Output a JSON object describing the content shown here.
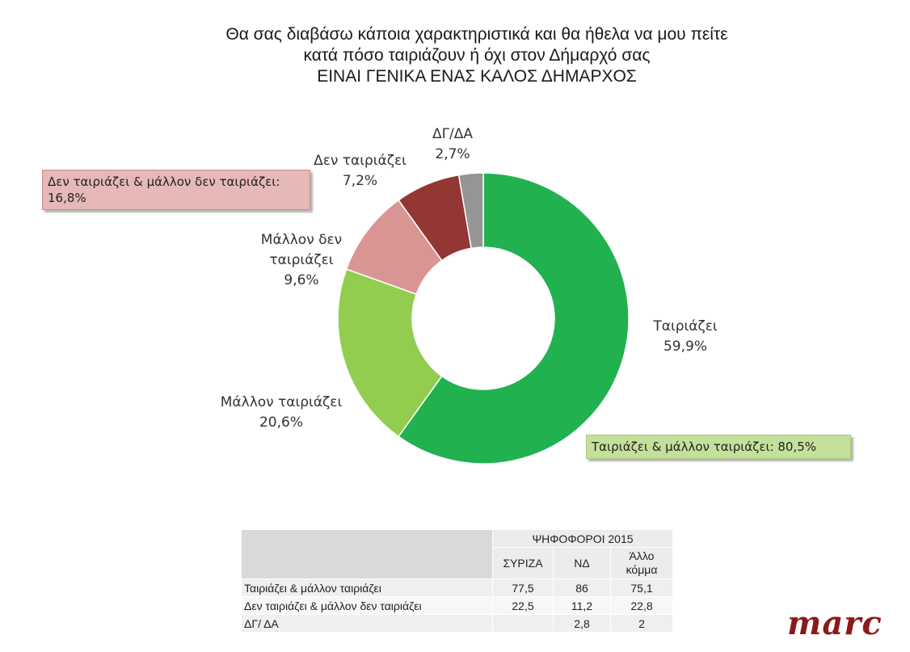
{
  "title": {
    "line1": "Θα σας διαβάσω κάποια χαρακτηριστικά και θα ήθελα να μου πείτε",
    "line2": "κατά πόσο ταιριάζουν ή όχι στον Δήμαρχό σας",
    "line3": "ΕΙΝΑΙ ΓΕΝΙΚΑ ΕΝΑΣ ΚΑΛΟΣ ΔΗΜΑΡΧΟΣ"
  },
  "chart_data": {
    "type": "pie",
    "donut": true,
    "slices": [
      {
        "name": "Ταιριάζει",
        "value": 59.9,
        "label": "59,9%",
        "color": "#21b14f"
      },
      {
        "name": "Μάλλον ταιριάζει",
        "value": 20.6,
        "label": "20,6%",
        "color": "#92cd50"
      },
      {
        "name": "Μάλλον δεν ταιριάζει",
        "value": 9.6,
        "label": "9,6%",
        "color": "#d99594"
      },
      {
        "name": "Δεν ταιριάζει",
        "value": 7.2,
        "label": "7,2%",
        "color": "#943634"
      },
      {
        "name": "ΔΓ/ΔΑ",
        "value": 2.7,
        "label": "2,7%",
        "color": "#959595"
      }
    ]
  },
  "callouts": {
    "negative": "Δεν ταιριάζει & μάλλον δεν ταιριάζει: 16,8%",
    "positive": "Ταιριάζει & μάλλον ταιριάζει: 80,5%"
  },
  "table": {
    "group_header": "ΨΗΦΟΦΟΡΟΙ 2015",
    "columns": [
      "ΣΥΡΙΖΑ",
      "ΝΔ",
      "Άλλο κόμμα"
    ],
    "rows": [
      {
        "label": "Ταιριάζει & μάλλον ταιριάζει",
        "values": [
          "77,5",
          "86",
          "75,1"
        ]
      },
      {
        "label": "Δεν ταιριάζει & μάλλον δεν ταιριάζει",
        "values": [
          "22,5",
          "11,2",
          "22,8"
        ]
      },
      {
        "label": "ΔΓ/ ΔΑ",
        "values": [
          "",
          "2,8",
          "2"
        ]
      }
    ]
  },
  "logo": "marc"
}
